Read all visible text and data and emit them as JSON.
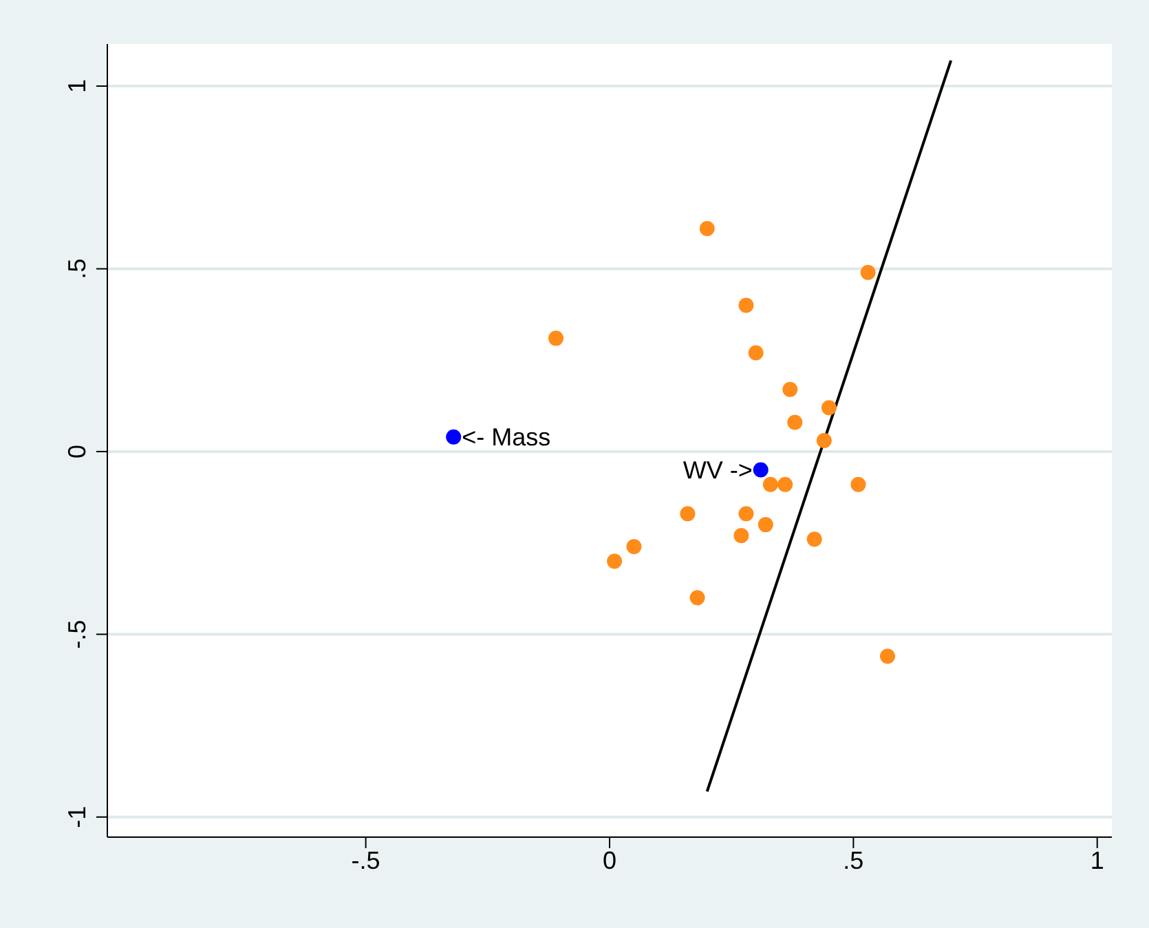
{
  "chart_data": {
    "type": "scatter",
    "series": [
      {
        "color": "#ff8c1a",
        "marker": "circle",
        "x": [
          0.2,
          0.53,
          0.28,
          -0.11,
          0.3,
          0.37,
          0.45,
          0.38,
          0.44,
          0.33,
          0.36,
          0.51,
          0.16,
          0.28,
          0.27,
          0.32,
          0.42,
          0.05,
          0.01,
          0.18,
          0.57
        ],
        "values": [
          0.61,
          0.49,
          0.4,
          0.31,
          0.27,
          0.17,
          0.12,
          0.08,
          0.03,
          -0.09,
          -0.09,
          -0.09,
          -0.17,
          -0.17,
          -0.23,
          -0.2,
          -0.24,
          -0.26,
          -0.3,
          -0.4,
          -0.56
        ]
      },
      {
        "color": "#0000ff",
        "marker": "circle",
        "x": [
          -0.32,
          0.31
        ],
        "values": [
          0.04,
          -0.05
        ]
      },
      {
        "type": "line",
        "color": "#000000",
        "x": [
          0.2,
          0.7
        ],
        "values": [
          -0.93,
          1.07
        ]
      }
    ],
    "xlim": [
      -1.03,
      1.03
    ],
    "xticks": [
      {
        "value": -0.5,
        "label": "-.5"
      },
      0,
      {
        "value": 0.5,
        "label": ".5"
      },
      1
    ],
    "ylim": [
      -1.055,
      1.115
    ],
    "yticks": [
      -1,
      {
        "value": -0.5,
        "label": "-.5"
      },
      0,
      {
        "value": 0.5,
        "label": ".5"
      },
      1
    ],
    "grid": "y",
    "annotations": [
      {
        "text": "<- Mass",
        "x": -0.32,
        "y": 0.04
      },
      {
        "text": "WV ->",
        "x": 0.31,
        "y": -0.05
      }
    ]
  }
}
